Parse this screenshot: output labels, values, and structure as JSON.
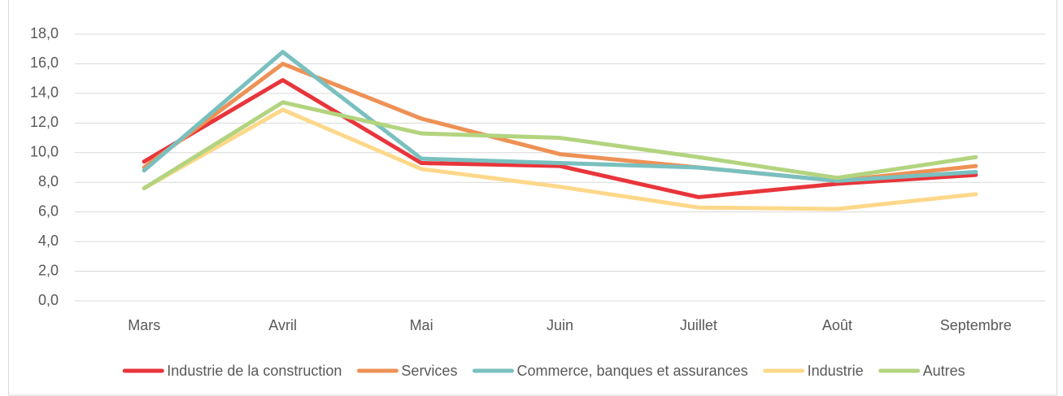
{
  "chart_data": {
    "type": "line",
    "categories": [
      "Mars",
      "Avril",
      "Mai",
      "Juin",
      "Juillet",
      "Août",
      "Septembre"
    ],
    "series": [
      {
        "name": "Industrie de la construction",
        "color": "#e8353b",
        "values": [
          9.4,
          14.9,
          9.3,
          9.1,
          7.0,
          7.9,
          8.5
        ]
      },
      {
        "name": "Services",
        "color": "#ee9155",
        "values": [
          9.0,
          16.0,
          12.3,
          9.9,
          9.0,
          8.1,
          9.1
        ]
      },
      {
        "name": "Commerce, banques et assurances",
        "color": "#79c0bf",
        "values": [
          8.8,
          16.8,
          9.6,
          9.3,
          9.0,
          8.1,
          8.7
        ]
      },
      {
        "name": "Industrie",
        "color": "#fdd88a",
        "values": [
          7.6,
          12.9,
          8.9,
          7.7,
          6.3,
          6.2,
          7.2
        ]
      },
      {
        "name": "Autres",
        "color": "#b3d47f",
        "values": [
          7.6,
          13.4,
          11.3,
          11.0,
          9.7,
          8.3,
          9.7
        ]
      }
    ],
    "ylim": [
      0,
      18
    ],
    "yticks": [
      {
        "value": 0,
        "label": "0,0"
      },
      {
        "value": 2,
        "label": "2,0"
      },
      {
        "value": 4,
        "label": "4,0"
      },
      {
        "value": 6,
        "label": "6,0"
      },
      {
        "value": 8,
        "label": "8,0"
      },
      {
        "value": 10,
        "label": "10,0"
      },
      {
        "value": 12,
        "label": "12,0"
      },
      {
        "value": 14,
        "label": "14,0"
      },
      {
        "value": 16,
        "label": "16,0"
      },
      {
        "value": 18,
        "label": "18,0"
      }
    ],
    "grid": true,
    "legend": "bottom"
  }
}
